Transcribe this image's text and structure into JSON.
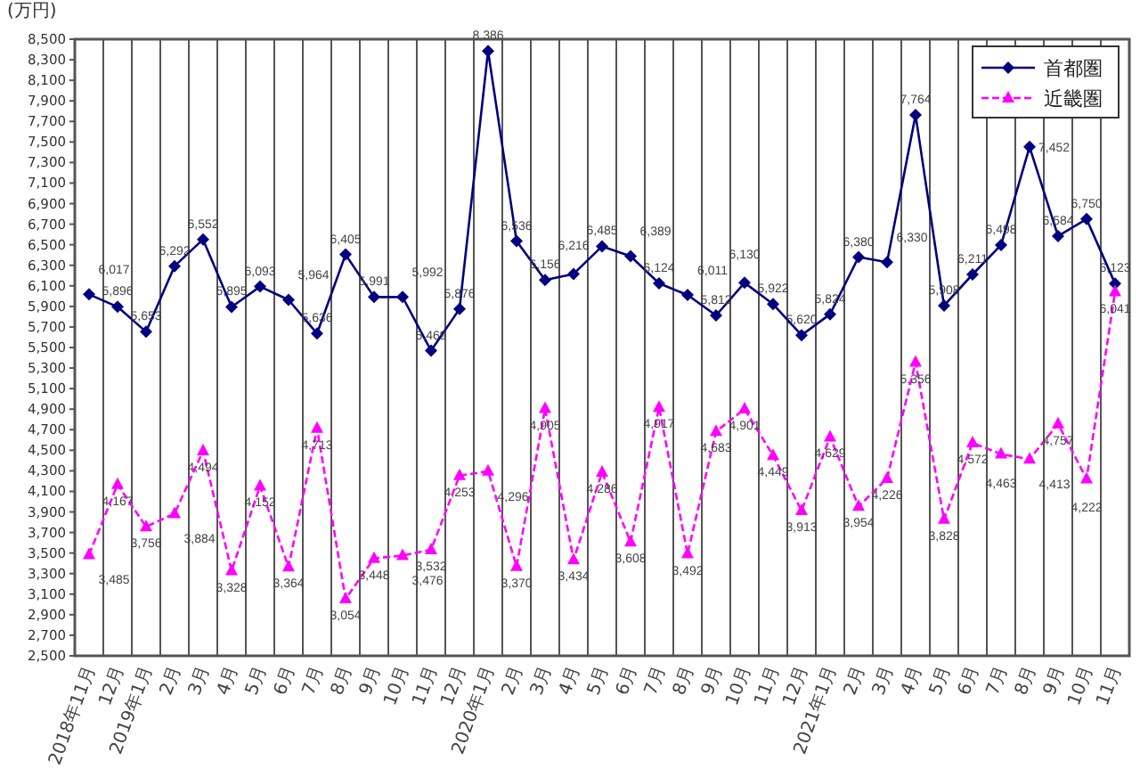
{
  "chart_data": {
    "type": "line",
    "ylabel": "(万円)",
    "categories": [
      "2018年11月",
      "12月",
      "2019年1月",
      "2月",
      "3月",
      "4月",
      "5月",
      "6月",
      "7月",
      "8月",
      "9月",
      "10月",
      "11月",
      "12月",
      "2020年1月",
      "2月",
      "3月",
      "4月",
      "5月",
      "6月",
      "7月",
      "8月",
      "9月",
      "10月",
      "11月",
      "12月",
      "2021年1月",
      "2月",
      "3月",
      "4月",
      "5月",
      "6月",
      "7月",
      "8月",
      "9月",
      "10月",
      "11月"
    ],
    "series": [
      {
        "name": "首都圏",
        "color": "#000080",
        "marker": "diamond",
        "line_style": "solid",
        "values": [
          6017,
          5896,
          5653,
          6292,
          6552,
          5895,
          6093,
          5964,
          5636,
          6405,
          5991,
          5992,
          5469,
          5876,
          8386,
          6536,
          6156,
          6216,
          6485,
          6389,
          6124,
          6011,
          5812,
          6130,
          5922,
          5620,
          5824,
          6380,
          6330,
          7764,
          5908,
          6211,
          6498,
          7452,
          6584,
          6750,
          6123
        ],
        "value_labels": [
          "6,017",
          "5,896",
          "5,653",
          "6,292",
          "6,552",
          "5,895",
          "6,093",
          "5,964",
          "5,636",
          "6,405",
          "5,991",
          "5,992",
          "5,469",
          "5,876",
          "8,386",
          "6,536",
          "6,156",
          "6,216",
          "6,485",
          "6,389",
          "6,124",
          "6,011",
          "5,812",
          "6,130",
          "5,922",
          "5,620",
          "5,824",
          "6,380",
          "6,330",
          "7,764",
          "5,908",
          "6,211",
          "6,498",
          "7,452",
          "6,584",
          "6,750",
          "6,123"
        ]
      },
      {
        "name": "近畿圏",
        "color": "#ff00ff",
        "marker": "triangle",
        "line_style": "dashed",
        "values": [
          3485,
          4167,
          3756,
          3884,
          4494,
          3328,
          4152,
          3364,
          4713,
          3054,
          3448,
          3476,
          3532,
          4253,
          4296,
          3370,
          4905,
          3434,
          4286,
          3608,
          4917,
          3492,
          4683,
          4901,
          4449,
          3913,
          4629,
          3954,
          4226,
          5356,
          3828,
          4572,
          4463,
          4413,
          4757,
          4222,
          6041
        ],
        "value_labels": [
          "3,485",
          "4,167",
          "3,756",
          "3,884",
          "4,494",
          "3,328",
          "4,152",
          "3,364",
          "4,713",
          "3,054",
          "3,448",
          "3,476",
          "3,532",
          "4,253",
          "4,296",
          "3,370",
          "4,905",
          "3,434",
          "4,286",
          "3,608",
          "4,917",
          "3,492",
          "4,683",
          "4,901",
          "4,449",
          "3,913",
          "4,629",
          "3,954",
          "4,226",
          "5,356",
          "3,828",
          "4,572",
          "4,463",
          "4,413",
          "4,757",
          "4,222",
          "6,041"
        ]
      }
    ],
    "ylim": [
      2500,
      8500
    ],
    "yticks": [
      {
        "value": 2500,
        "label": "2,500"
      },
      {
        "value": 2700,
        "label": "2,700"
      },
      {
        "value": 2900,
        "label": "2,900"
      },
      {
        "value": 3100,
        "label": "3,100"
      },
      {
        "value": 3300,
        "label": "3,300"
      },
      {
        "value": 3500,
        "label": "3,500"
      },
      {
        "value": 3700,
        "label": "3,700"
      },
      {
        "value": 3900,
        "label": "3,900"
      },
      {
        "value": 4100,
        "label": "4,100"
      },
      {
        "value": 4300,
        "label": "4,300"
      },
      {
        "value": 4500,
        "label": "4,500"
      },
      {
        "value": 4700,
        "label": "4,700"
      },
      {
        "value": 4900,
        "label": "4,900"
      },
      {
        "value": 5100,
        "label": "5,100"
      },
      {
        "value": 5300,
        "label": "5,300"
      },
      {
        "value": 5500,
        "label": "5,500"
      },
      {
        "value": 5700,
        "label": "5,700"
      },
      {
        "value": 5900,
        "label": "5,900"
      },
      {
        "value": 6100,
        "label": "6,100"
      },
      {
        "value": 6300,
        "label": "6,300"
      },
      {
        "value": 6500,
        "label": "6,500"
      },
      {
        "value": 6700,
        "label": "6,700"
      },
      {
        "value": 6900,
        "label": "6,900"
      },
      {
        "value": 7100,
        "label": "7,100"
      },
      {
        "value": 7300,
        "label": "7,300"
      },
      {
        "value": 7500,
        "label": "7,500"
      },
      {
        "value": 7700,
        "label": "7,700"
      },
      {
        "value": 7900,
        "label": "7,900"
      },
      {
        "value": 8100,
        "label": "8,100"
      },
      {
        "value": 8300,
        "label": "8,300"
      },
      {
        "value": 8500,
        "label": "8,500"
      }
    ],
    "grid": "x",
    "legend": "top right"
  }
}
